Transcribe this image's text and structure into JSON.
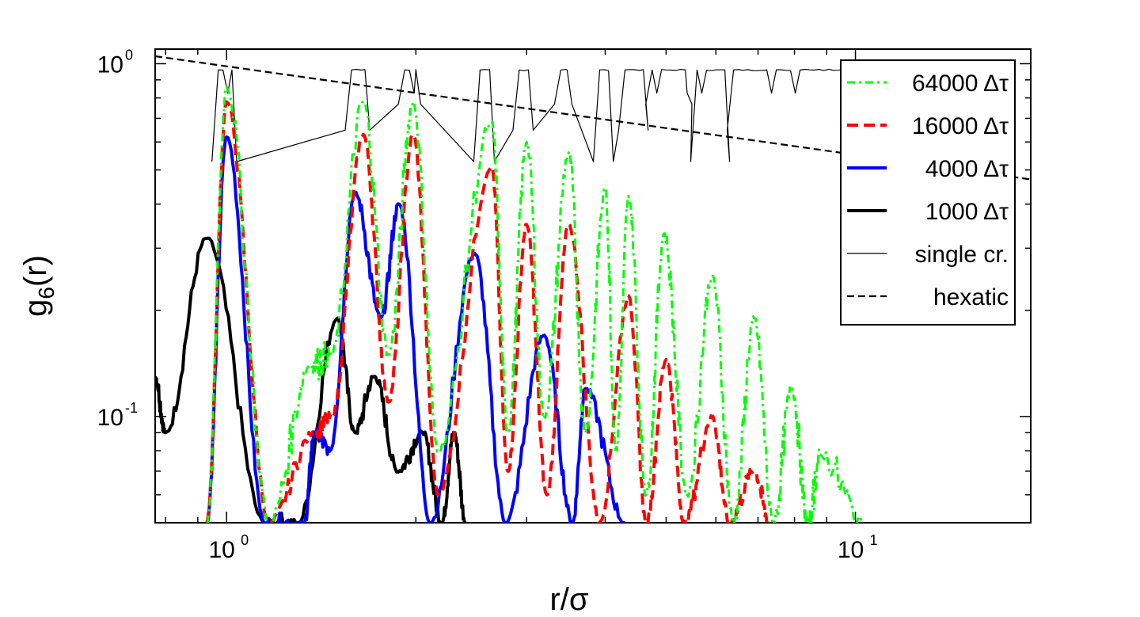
{
  "chart_data": {
    "type": "line",
    "title": "",
    "xlabel": "r/σ",
    "ylabel": "g6(r)",
    "xscale": "log",
    "yscale": "log",
    "xlim": [
      0.77,
      19.0
    ],
    "ylim": [
      0.05,
      1.1
    ],
    "x_ticks": [
      {
        "base": "10",
        "exp": "0",
        "value": 1
      },
      {
        "base": "10",
        "exp": "1",
        "value": 10
      }
    ],
    "y_ticks": [
      {
        "base": "10",
        "exp": "-1",
        "value": 0.1
      },
      {
        "base": "10",
        "exp": "0",
        "value": 1
      }
    ],
    "legend_position": "top-right",
    "series": [
      {
        "name": "64000 Δτ",
        "color": "#00ff00",
        "style": "dash-dot",
        "width": 3,
        "peaks": [
          {
            "x": 1.0,
            "y": 0.86
          },
          {
            "x": 1.65,
            "y": 0.78
          },
          {
            "x": 1.98,
            "y": 0.78
          },
          {
            "x": 2.64,
            "y": 0.68
          },
          {
            "x": 3.0,
            "y": 0.6
          },
          {
            "x": 3.5,
            "y": 0.56
          },
          {
            "x": 4.0,
            "y": 0.44
          },
          {
            "x": 4.36,
            "y": 0.42
          },
          {
            "x": 4.96,
            "y": 0.33
          },
          {
            "x": 5.92,
            "y": 0.25
          },
          {
            "x": 6.9,
            "y": 0.19
          },
          {
            "x": 7.93,
            "y": 0.12
          },
          {
            "x": 8.8,
            "y": 0.078
          }
        ],
        "minima": [
          {
            "x": 0.93,
            "y": 0.05
          },
          {
            "x": 1.17,
            "y": 0.05
          },
          {
            "x": 1.36,
            "y": 0.14
          },
          {
            "x": 1.47,
            "y": 0.15
          },
          {
            "x": 1.81,
            "y": 0.15
          },
          {
            "x": 2.17,
            "y": 0.08
          },
          {
            "x": 2.8,
            "y": 0.09
          },
          {
            "x": 3.2,
            "y": 0.1
          },
          {
            "x": 3.72,
            "y": 0.09
          },
          {
            "x": 4.16,
            "y": 0.08
          },
          {
            "x": 4.65,
            "y": 0.06
          },
          {
            "x": 5.4,
            "y": 0.06
          },
          {
            "x": 6.4,
            "y": 0.05
          },
          {
            "x": 7.4,
            "y": 0.05
          },
          {
            "x": 8.4,
            "y": 0.05
          },
          {
            "x": 10.3,
            "y": 0.05
          }
        ]
      },
      {
        "name": "16000 Δτ",
        "color": "#ff0000",
        "style": "dashed",
        "width": 4,
        "peaks": [
          {
            "x": 1.0,
            "y": 0.78
          },
          {
            "x": 1.65,
            "y": 0.63
          },
          {
            "x": 1.98,
            "y": 0.63
          },
          {
            "x": 2.64,
            "y": 0.51
          },
          {
            "x": 3.0,
            "y": 0.35
          },
          {
            "x": 3.5,
            "y": 0.35
          },
          {
            "x": 4.36,
            "y": 0.22
          },
          {
            "x": 5.0,
            "y": 0.145
          },
          {
            "x": 5.92,
            "y": 0.1
          },
          {
            "x": 6.9,
            "y": 0.07
          }
        ],
        "minima": [
          {
            "x": 0.93,
            "y": 0.05
          },
          {
            "x": 1.17,
            "y": 0.05
          },
          {
            "x": 1.38,
            "y": 0.09
          },
          {
            "x": 1.47,
            "y": 0.1
          },
          {
            "x": 1.81,
            "y": 0.11
          },
          {
            "x": 2.17,
            "y": 0.06
          },
          {
            "x": 2.8,
            "y": 0.07
          },
          {
            "x": 3.23,
            "y": 0.06
          },
          {
            "x": 3.92,
            "y": 0.05
          },
          {
            "x": 4.65,
            "y": 0.05
          },
          {
            "x": 5.35,
            "y": 0.05
          },
          {
            "x": 6.3,
            "y": 0.05
          },
          {
            "x": 7.3,
            "y": 0.05
          }
        ]
      },
      {
        "name": "4000 Δτ",
        "color": "#0000ff",
        "style": "solid",
        "width": 4,
        "peaks": [
          {
            "x": 1.0,
            "y": 0.62
          },
          {
            "x": 1.6,
            "y": 0.43
          },
          {
            "x": 1.88,
            "y": 0.4
          },
          {
            "x": 2.48,
            "y": 0.29
          },
          {
            "x": 3.2,
            "y": 0.17
          },
          {
            "x": 3.72,
            "y": 0.12
          }
        ],
        "minima": [
          {
            "x": 0.93,
            "y": 0.05
          },
          {
            "x": 1.15,
            "y": 0.05
          },
          {
            "x": 1.33,
            "y": 0.05
          },
          {
            "x": 1.38,
            "y": 0.09
          },
          {
            "x": 1.46,
            "y": 0.08
          },
          {
            "x": 1.76,
            "y": 0.19
          },
          {
            "x": 2.11,
            "y": 0.05
          },
          {
            "x": 2.78,
            "y": 0.05
          },
          {
            "x": 3.55,
            "y": 0.05
          },
          {
            "x": 4.3,
            "y": 0.05
          }
        ]
      },
      {
        "name": "1000 Δτ",
        "color": "#000000",
        "style": "solid",
        "width": 4,
        "peaks": [
          {
            "x": 0.93,
            "y": 0.32
          },
          {
            "x": 1.5,
            "y": 0.19
          },
          {
            "x": 1.72,
            "y": 0.13
          },
          {
            "x": 2.05,
            "y": 0.09
          },
          {
            "x": 2.3,
            "y": 0.09
          }
        ],
        "minima": [
          {
            "x": 0.77,
            "y": 0.13
          },
          {
            "x": 0.8,
            "y": 0.09
          },
          {
            "x": 1.15,
            "y": 0.05
          },
          {
            "x": 1.3,
            "y": 0.05
          },
          {
            "x": 1.6,
            "y": 0.09
          },
          {
            "x": 1.87,
            "y": 0.07
          },
          {
            "x": 2.2,
            "y": 0.05
          },
          {
            "x": 2.4,
            "y": 0.05
          }
        ]
      },
      {
        "name": "single cr.",
        "color": "#000000",
        "style": "thin",
        "width": 1.2,
        "plateaus": [
          {
            "x0": 0.97,
            "x1": 1.02,
            "y": 0.96
          },
          {
            "x0": 1.58,
            "x1": 1.66,
            "y": 0.96
          },
          {
            "x0": 1.92,
            "x1": 2.0,
            "y": 0.96
          },
          {
            "x0": 2.53,
            "x1": 2.62,
            "y": 0.96
          },
          {
            "x0": 2.92,
            "x1": 3.02,
            "y": 0.96
          },
          {
            "x0": 3.4,
            "x1": 3.48,
            "y": 0.96
          },
          {
            "x0": 3.92,
            "x1": 4.05,
            "y": 0.96
          },
          {
            "x0": 4.3,
            "x1": 4.6,
            "y": 0.96
          },
          {
            "x0": 4.75,
            "x1": 5.4,
            "y": 0.96
          },
          {
            "x0": 5.6,
            "x1": 6.2,
            "y": 0.96
          },
          {
            "x0": 6.4,
            "x1": 10.5,
            "y": 0.96
          }
        ]
      },
      {
        "name": "hexatic",
        "color": "#000000",
        "style": "dashed-thin",
        "width": 2.2,
        "x": [
          0.77,
          19.0
        ],
        "y": [
          1.05,
          0.47
        ]
      }
    ]
  }
}
